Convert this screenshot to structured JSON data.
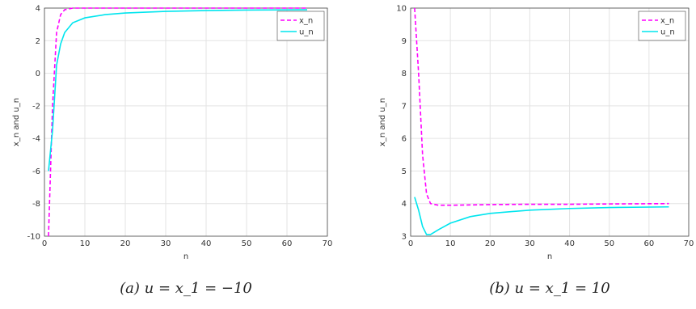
{
  "chart_data": [
    {
      "type": "line",
      "caption": "(a) u = x_1 = −10",
      "xlabel": "n",
      "ylabel": "x_n and u_n",
      "x": [
        1,
        2,
        3,
        4,
        5,
        7,
        10,
        15,
        20,
        30,
        40,
        50,
        65
      ],
      "series": [
        {
          "name": "x_n",
          "color": "#ff00ff",
          "dash": true,
          "values": [
            -10,
            -2,
            2.5,
            3.6,
            3.9,
            4,
            4,
            4,
            4,
            4,
            4,
            4,
            4
          ]
        },
        {
          "name": "u_n",
          "color": "#00e5ee",
          "dash": false,
          "values": [
            -6,
            -3.5,
            0.5,
            1.8,
            2.5,
            3.1,
            3.4,
            3.6,
            3.7,
            3.8,
            3.85,
            3.88,
            3.9
          ]
        }
      ],
      "xlim": [
        0,
        70
      ],
      "xticks": [
        0,
        10,
        20,
        30,
        40,
        50,
        60,
        70
      ],
      "ylim": [
        -10,
        4
      ],
      "yticks": [
        -10,
        -8,
        -6,
        -4,
        -2,
        0,
        2,
        4
      ],
      "grid": true,
      "legend": "upper right"
    },
    {
      "type": "line",
      "caption": "(b) u = x_1 = 10",
      "xlabel": "n",
      "ylabel": "x_n and u_n",
      "x": [
        1,
        2,
        3,
        4,
        5,
        7,
        10,
        15,
        20,
        30,
        40,
        50,
        65
      ],
      "series": [
        {
          "name": "x_n",
          "color": "#ff00ff",
          "dash": true,
          "values": [
            10,
            8,
            5.5,
            4.3,
            4.0,
            3.95,
            3.95,
            3.96,
            3.97,
            3.98,
            3.98,
            3.99,
            4
          ]
        },
        {
          "name": "u_n",
          "color": "#00e5ee",
          "dash": false,
          "values": [
            4.2,
            3.8,
            3.3,
            3.05,
            3.05,
            3.2,
            3.4,
            3.6,
            3.7,
            3.8,
            3.85,
            3.88,
            3.9
          ]
        }
      ],
      "xlim": [
        0,
        70
      ],
      "xticks": [
        0,
        10,
        20,
        30,
        40,
        50,
        60,
        70
      ],
      "ylim": [
        3,
        10
      ],
      "yticks": [
        3,
        4,
        5,
        6,
        7,
        8,
        9,
        10
      ],
      "grid": true,
      "legend": "upper right"
    }
  ]
}
